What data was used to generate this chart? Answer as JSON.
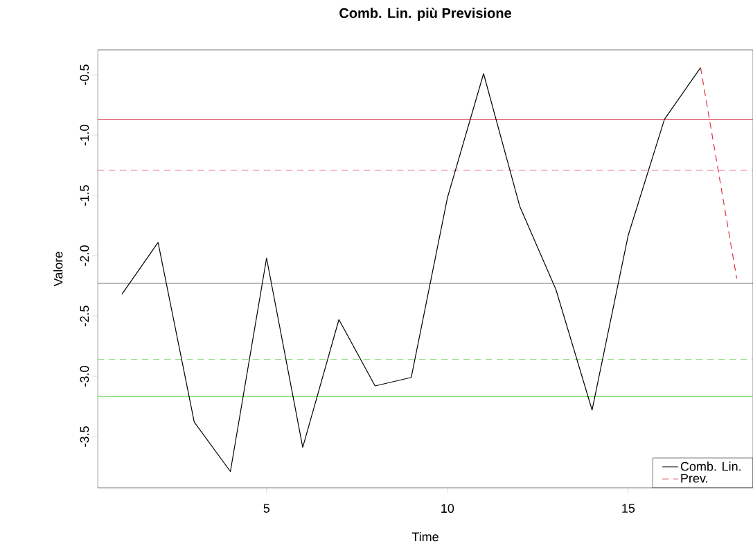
{
  "chart_data": {
    "type": "line",
    "title": "Comb. Lin. più Previsione",
    "xlabel": "Time",
    "ylabel": "Valore",
    "xlim": [
      0.33,
      18.45
    ],
    "ylim": [
      -3.925,
      -0.293
    ],
    "xticks": [
      5,
      10,
      15
    ],
    "yticks": [
      {
        "value": -3.5,
        "label": "-3.5"
      },
      {
        "value": -3.0,
        "label": "-3.0"
      },
      {
        "value": -2.5,
        "label": "-2.5"
      },
      {
        "value": -2.0,
        "label": "-2.0"
      },
      {
        "value": -1.5,
        "label": "-1.5"
      },
      {
        "value": -1.0,
        "label": "-1.0"
      },
      {
        "value": -0.5,
        "label": "-0.5"
      }
    ],
    "series": [
      {
        "name": "Comb. Lin.",
        "color": "#000000",
        "line_style": "solid",
        "x": [
          1,
          2,
          3,
          4,
          5,
          6,
          7,
          8,
          9,
          10,
          11,
          12,
          13,
          14,
          15,
          16,
          17
        ],
        "values": [
          -2.32,
          -1.89,
          -3.38,
          -3.79,
          -2.02,
          -3.59,
          -2.53,
          -3.08,
          -3.01,
          -1.52,
          -0.49,
          -1.59,
          -2.28,
          -3.28,
          -1.83,
          -0.87,
          -0.44
        ]
      },
      {
        "name": "Prev.",
        "color": "#e0303a",
        "line_style": "dashed",
        "x": [
          17,
          18
        ],
        "values": [
          -0.44,
          -2.19
        ]
      }
    ],
    "ref_lines": [
      {
        "axis": "y",
        "value": -0.87,
        "color": "#df536b",
        "line_style": "solid"
      },
      {
        "axis": "y",
        "value": -1.29,
        "color": "#df536b",
        "line_style": "dashed"
      },
      {
        "axis": "y",
        "value": -2.23,
        "color": "#000000",
        "line_style": "solid"
      },
      {
        "axis": "y",
        "value": -2.86,
        "color": "#61d04f",
        "line_style": "dashed"
      },
      {
        "axis": "y",
        "value": -3.17,
        "color": "#61d04f",
        "line_style": "solid"
      }
    ],
    "legend": "bottom right",
    "grid": false,
    "marker": "none"
  }
}
